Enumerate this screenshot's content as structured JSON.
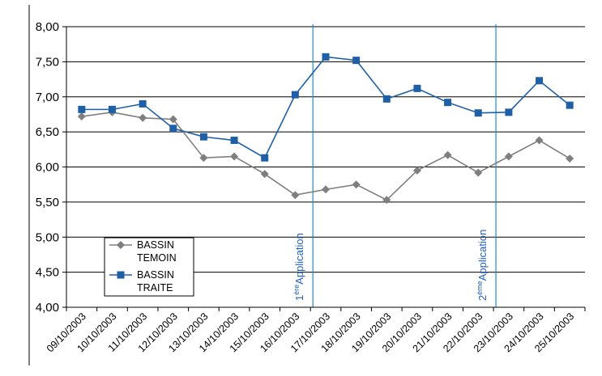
{
  "chart_data": {
    "type": "line",
    "title": "",
    "xlabel": "",
    "ylabel": "",
    "categories": [
      "09/10/2003",
      "10/10/2003",
      "11/10/2003",
      "12/10/2003",
      "13/10/2003",
      "14/10/2003",
      "15/10/2003",
      "16/10/2003",
      "17/10/2003",
      "18/10/2003",
      "19/10/2003",
      "20/10/2003",
      "21/10/2003",
      "22/10/2003",
      "23/10/2003",
      "24/10/2003",
      "25/10/2003"
    ],
    "ylim": [
      4.0,
      8.0
    ],
    "yticks": [
      "4,00",
      "4,50",
      "5,00",
      "5,50",
      "6,00",
      "6,50",
      "7,00",
      "7,50",
      "8,00"
    ],
    "grid": true,
    "legend_position": "bottom-left",
    "series": [
      {
        "name": "BASSIN TEMOIN",
        "name_lines": [
          "BASSIN",
          "TEMOIN"
        ],
        "color": "#7f7f7f",
        "marker": "diamond",
        "values": [
          6.72,
          6.78,
          6.7,
          6.68,
          6.13,
          6.15,
          5.9,
          5.6,
          5.68,
          5.75,
          5.53,
          5.95,
          6.17,
          5.92,
          6.15,
          6.38,
          6.12
        ]
      },
      {
        "name": "BASSIN TRAITE",
        "name_lines": [
          "BASSIN",
          "TRAITE"
        ],
        "color": "#1f5fa6",
        "marker": "square",
        "values": [
          6.82,
          6.82,
          6.9,
          6.55,
          6.43,
          6.38,
          6.13,
          7.03,
          7.57,
          7.52,
          6.97,
          7.12,
          6.92,
          6.77,
          6.78,
          7.23,
          6.88
        ]
      }
    ],
    "annotations": [
      {
        "position_between": [
          7,
          8
        ],
        "label_sup": "ère",
        "label_prefix": "1",
        "label_main": "Application",
        "color": "#1f8fc9"
      },
      {
        "position_between": [
          13,
          14
        ],
        "label_sup": "ème",
        "label_prefix": "2",
        "label_main": "Application",
        "color": "#1f8fc9"
      }
    ]
  }
}
